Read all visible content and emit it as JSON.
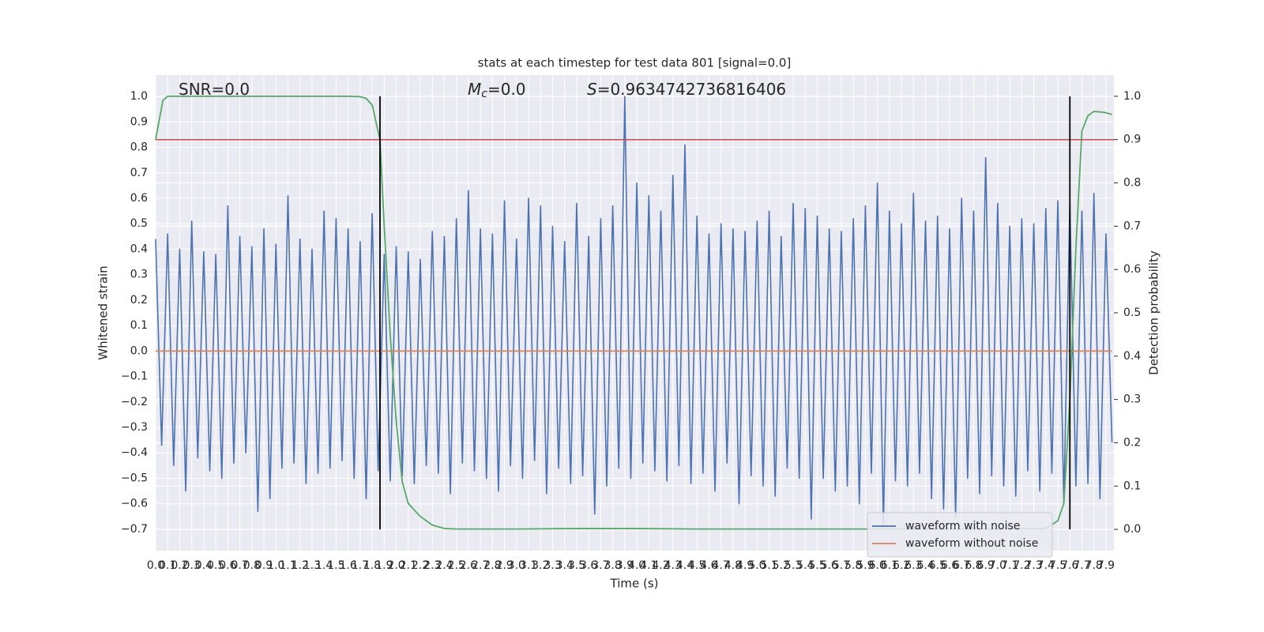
{
  "chart_data": {
    "type": "line",
    "title": "stats at each timestep for test data 801 [signal=0.0]",
    "x_label": "Time (s)",
    "y_label": "Whitened strain",
    "y2_label": "Detection probability",
    "annotations": [
      {
        "text": "SNR=0.0"
      },
      {
        "symbol": "M",
        "subscript": "c",
        "text": "=0.0"
      },
      {
        "symbol": "S",
        "text": "=0.9634742736816406"
      }
    ],
    "grid": true,
    "legend": "lower right",
    "xlim": [
      0,
      7.966
    ],
    "ylim": [
      -0.784,
      1.084
    ],
    "y2lim": [
      -0.049,
      1.049
    ],
    "xticks": [
      {
        "value": 0,
        "label": "0.0"
      },
      0.1,
      0.2,
      0.3,
      0.4,
      0.5,
      0.6,
      0.7,
      0.8,
      0.9,
      {
        "value": 1,
        "label": "1.0"
      },
      1.1,
      1.2,
      1.3,
      1.4,
      1.5,
      1.6,
      1.7,
      1.8,
      1.9,
      {
        "value": 2,
        "label": "2.0"
      },
      2.1,
      2.2,
      2.3,
      2.4,
      2.5,
      2.6,
      2.7,
      2.8,
      2.9,
      {
        "value": 3,
        "label": "3.0"
      },
      3.1,
      3.2,
      3.3,
      3.4,
      3.5,
      3.6,
      3.7,
      3.8,
      3.9,
      {
        "value": 4,
        "label": "4.0"
      },
      4.1,
      4.2,
      4.3,
      4.4,
      4.5,
      4.6,
      4.7,
      4.8,
      4.9,
      {
        "value": 5,
        "label": "5.0"
      },
      5.1,
      5.2,
      5.3,
      5.4,
      5.5,
      5.6,
      5.7,
      5.8,
      5.9,
      {
        "value": 6,
        "label": "6.0"
      },
      6.1,
      6.2,
      6.3,
      6.4,
      6.5,
      6.6,
      6.7,
      6.8,
      6.9,
      {
        "value": 7,
        "label": "7.0"
      },
      7.1,
      7.2,
      7.3,
      7.4,
      7.5,
      7.6,
      7.7,
      7.8,
      7.9
    ],
    "yticks": [
      {
        "value": -0.7,
        "label": "−0.7"
      },
      {
        "value": -0.6,
        "label": "−0.6"
      },
      {
        "value": -0.5,
        "label": "−0.5"
      },
      {
        "value": -0.4,
        "label": "−0.4"
      },
      {
        "value": -0.3,
        "label": "−0.3"
      },
      {
        "value": -0.2,
        "label": "−0.2"
      },
      {
        "value": -0.1,
        "label": "−0.1"
      },
      {
        "value": 0,
        "label": "0.0"
      },
      0.1,
      0.2,
      0.3,
      0.4,
      0.5,
      0.6,
      0.7,
      0.8,
      0.9,
      {
        "value": 1,
        "label": "1.0"
      }
    ],
    "y2ticks": [
      {
        "value": 0,
        "label": "0.0"
      },
      0.1,
      0.2,
      0.3,
      0.4,
      0.5,
      0.6,
      0.7,
      0.8,
      0.9,
      {
        "value": 1,
        "label": "1.0"
      }
    ],
    "series": [
      {
        "name": "waveform with noise",
        "color": "#4c72b0",
        "x": [
          0,
          0.05,
          0.1,
          0.15,
          0.2,
          0.25,
          0.3,
          0.35,
          0.4,
          0.45,
          0.5,
          0.55,
          0.6,
          0.65,
          0.7,
          0.75,
          0.8,
          0.85,
          0.9,
          0.95,
          1,
          1.05,
          1.1,
          1.15,
          1.2,
          1.25,
          1.3,
          1.35,
          1.4,
          1.45,
          1.5,
          1.55,
          1.6,
          1.65,
          1.7,
          1.75,
          1.8,
          1.85,
          1.9,
          1.95,
          2,
          2.05,
          2.1,
          2.15,
          2.2,
          2.25,
          2.3,
          2.35,
          2.4,
          2.45,
          2.5,
          2.55,
          2.6,
          2.65,
          2.7,
          2.75,
          2.8,
          2.85,
          2.9,
          2.95,
          3,
          3.05,
          3.1,
          3.15,
          3.2,
          3.25,
          3.3,
          3.35,
          3.4,
          3.45,
          3.5,
          3.55,
          3.6,
          3.65,
          3.7,
          3.75,
          3.8,
          3.85,
          3.9,
          3.95,
          4,
          4.05,
          4.1,
          4.15,
          4.2,
          4.25,
          4.3,
          4.35,
          4.4,
          4.45,
          4.5,
          4.55,
          4.6,
          4.65,
          4.7,
          4.75,
          4.8,
          4.85,
          4.9,
          4.95,
          5,
          5.05,
          5.1,
          5.15,
          5.2,
          5.25,
          5.3,
          5.35,
          5.4,
          5.45,
          5.5,
          5.55,
          5.6,
          5.65,
          5.7,
          5.75,
          5.8,
          5.85,
          5.9,
          5.95,
          6,
          6.05,
          6.1,
          6.15,
          6.2,
          6.25,
          6.3,
          6.35,
          6.4,
          6.45,
          6.5,
          6.55,
          6.6,
          6.65,
          6.7,
          6.75,
          6.8,
          6.85,
          6.9,
          6.95,
          7,
          7.05,
          7.1,
          7.15,
          7.2,
          7.25,
          7.3,
          7.35,
          7.4,
          7.45,
          7.5,
          7.55,
          7.6,
          7.65,
          7.7,
          7.75,
          7.8,
          7.85,
          7.9,
          7.95
        ],
        "values": [
          0.44,
          -0.37,
          0.46,
          -0.45,
          0.4,
          -0.55,
          0.51,
          -0.42,
          0.39,
          -0.47,
          0.38,
          -0.5,
          0.57,
          -0.44,
          0.45,
          -0.4,
          0.41,
          -0.63,
          0.48,
          -0.58,
          0.42,
          -0.46,
          0.61,
          -0.44,
          0.44,
          -0.52,
          0.4,
          -0.48,
          0.55,
          -0.46,
          0.52,
          -0.43,
          0.48,
          -0.5,
          0.43,
          -0.58,
          0.54,
          -0.47,
          0.38,
          -0.51,
          0.41,
          -0.49,
          0.39,
          -0.52,
          0.36,
          -0.45,
          0.47,
          -0.48,
          0.45,
          -0.56,
          0.52,
          -0.44,
          0.63,
          -0.47,
          0.48,
          -0.5,
          0.46,
          -0.55,
          0.59,
          -0.45,
          0.44,
          -0.5,
          0.6,
          -0.43,
          0.57,
          -0.56,
          0.49,
          -0.46,
          0.43,
          -0.52,
          0.58,
          -0.49,
          0.45,
          -0.64,
          0.52,
          -0.53,
          0.57,
          -0.46,
          1.0,
          -0.5,
          0.66,
          -0.44,
          0.61,
          -0.47,
          0.55,
          -0.51,
          0.69,
          -0.45,
          0.81,
          -0.52,
          0.53,
          -0.48,
          0.46,
          -0.55,
          0.5,
          -0.44,
          0.48,
          -0.6,
          0.47,
          -0.49,
          0.51,
          -0.53,
          0.55,
          -0.57,
          0.45,
          -0.46,
          0.58,
          -0.5,
          0.56,
          -0.66,
          0.53,
          -0.5,
          0.48,
          -0.55,
          0.47,
          -0.53,
          0.52,
          -0.6,
          0.57,
          -0.48,
          0.66,
          -0.68,
          0.55,
          -0.51,
          0.5,
          -0.53,
          0.62,
          -0.48,
          0.51,
          -0.58,
          0.53,
          -0.62,
          0.48,
          -0.65,
          0.6,
          -0.5,
          0.55,
          -0.56,
          0.76,
          -0.49,
          0.58,
          -0.53,
          0.49,
          -0.57,
          0.52,
          -0.47,
          0.5,
          -0.55,
          0.56,
          -0.48,
          0.59,
          -0.6,
          0.58,
          -0.53,
          0.55,
          -0.52,
          0.62,
          -0.58,
          0.46,
          -0.36
        ]
      },
      {
        "name": "waveform without noise",
        "color": "#dd8452",
        "x": [
          0,
          7.95
        ],
        "values": [
          0,
          0
        ]
      },
      {
        "color": "#55a868",
        "axis": "y2",
        "x": [
          0,
          0.06,
          0.1,
          0.3,
          0.6,
          0.9,
          1.2,
          1.5,
          1.6,
          1.7,
          1.75,
          1.8,
          1.865,
          1.9,
          1.95,
          2.0,
          2.05,
          2.1,
          2.2,
          2.3,
          2.4,
          2.5,
          3.0,
          3.5,
          4.0,
          4.5,
          5.0,
          5.5,
          6.0,
          6.5,
          7.0,
          7.4,
          7.5,
          7.55,
          7.6,
          7.65,
          7.7,
          7.75,
          7.8,
          7.85,
          7.9,
          7.95
        ],
        "values": [
          0.9,
          0.99,
          1.0,
          1.0,
          1.0,
          1.0,
          1.0,
          1.0,
          1.0,
          0.999,
          0.995,
          0.98,
          0.9,
          0.7,
          0.45,
          0.25,
          0.11,
          0.06,
          0.03,
          0.01,
          0.002,
          0.001,
          0.001,
          0.002,
          0.002,
          0.001,
          0.001,
          0.001,
          0.001,
          0.001,
          0.001,
          0.002,
          0.02,
          0.06,
          0.3,
          0.65,
          0.92,
          0.955,
          0.965,
          0.964,
          0.962,
          0.958
        ]
      }
    ],
    "hline": {
      "y": 0.9,
      "axis": "y2",
      "color": "#c44e52"
    },
    "vlines": {
      "x": [
        1.865,
        7.6
      ],
      "ymin": 0,
      "ymax": 1,
      "axis": "y2",
      "color": "#000000"
    }
  }
}
